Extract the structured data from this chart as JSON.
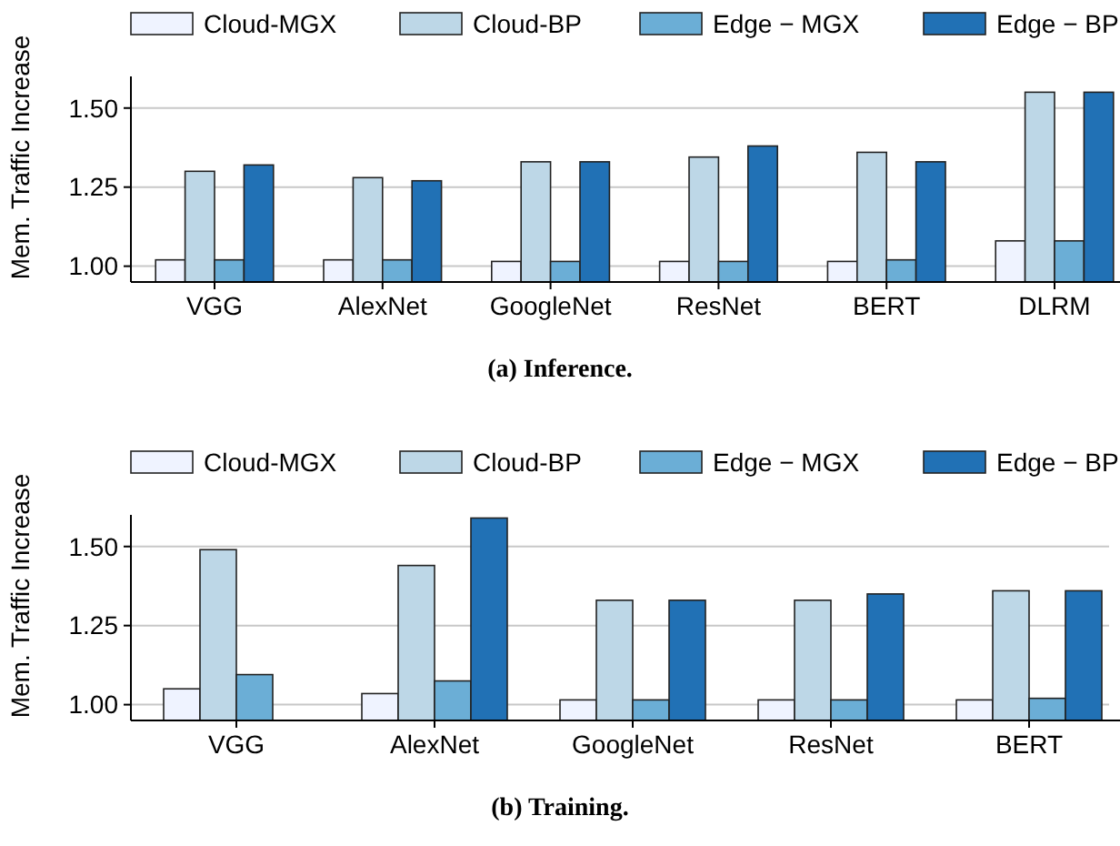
{
  "chart_data": [
    {
      "type": "bar",
      "title": "(a) Inference.",
      "ylabel": "Mem. Traffic Increase",
      "categories": [
        "VGG",
        "AlexNet",
        "GoogleNet",
        "ResNet",
        "BERT",
        "DLRM"
      ],
      "series": [
        {
          "name": "Cloud-MGX",
          "color": "#eff3ff",
          "values": [
            1.02,
            1.02,
            1.015,
            1.015,
            1.015,
            1.08
          ]
        },
        {
          "name": "Cloud-BP",
          "color": "#bdd7e7",
          "values": [
            1.3,
            1.28,
            1.33,
            1.345,
            1.36,
            1.55
          ]
        },
        {
          "name": "Edge − MGX",
          "color": "#6baed6",
          "values": [
            1.02,
            1.02,
            1.015,
            1.015,
            1.02,
            1.08
          ]
        },
        {
          "name": "Edge − BP",
          "color": "#2171b5",
          "values": [
            1.32,
            1.27,
            1.33,
            1.38,
            1.33,
            1.55
          ]
        }
      ],
      "ylim": [
        0.95,
        1.6
      ],
      "yticks": [
        {
          "value": 1,
          "label": "1.00"
        },
        {
          "value": 1.25,
          "label": "1.25"
        },
        {
          "value": 1.5,
          "label": "1.50"
        }
      ],
      "grid": "y",
      "legend": "top"
    },
    {
      "type": "bar",
      "title": "(b) Training.",
      "ylabel": "Mem. Traffic Increase",
      "categories": [
        "VGG",
        "AlexNet",
        "GoogleNet",
        "ResNet",
        "BERT"
      ],
      "series": [
        {
          "name": "Cloud-MGX",
          "color": "#eff3ff",
          "values": [
            1.05,
            1.035,
            1.015,
            1.015,
            1.015
          ]
        },
        {
          "name": "Cloud-BP",
          "color": "#bdd7e7",
          "values": [
            1.49,
            1.44,
            1.33,
            1.33,
            1.36
          ]
        },
        {
          "name": "Edge − MGX",
          "color": "#6baed6",
          "values": [
            1.095,
            1.075,
            1.015,
            1.015,
            1.02
          ]
        },
        {
          "name": "Edge − BP",
          "color": "#2171b5",
          "values": [
            null,
            1.59,
            1.33,
            1.35,
            1.36
          ]
        }
      ],
      "ylim": [
        0.95,
        1.6
      ],
      "yticks": [
        {
          "value": 1,
          "label": "1.00"
        },
        {
          "value": 1.25,
          "label": "1.25"
        },
        {
          "value": 1.5,
          "label": "1.50"
        }
      ],
      "grid": "y",
      "legend": "top"
    }
  ]
}
